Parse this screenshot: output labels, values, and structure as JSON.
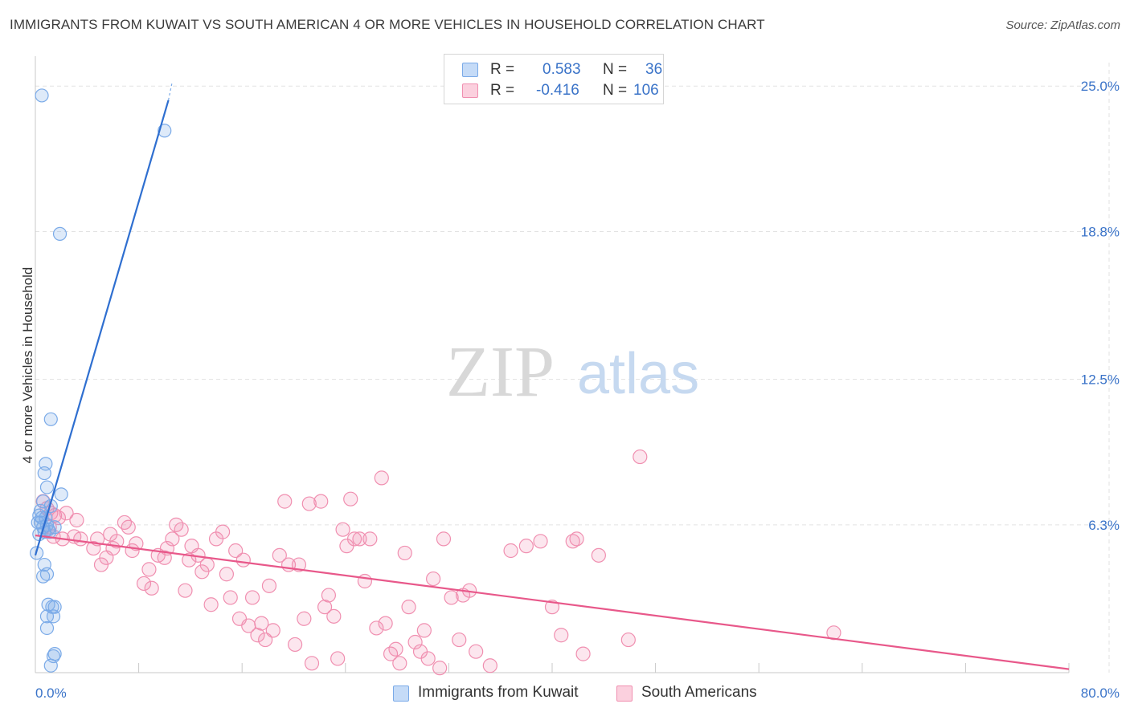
{
  "title": "IMMIGRANTS FROM KUWAIT VS SOUTH AMERICAN 4 OR MORE VEHICLES IN HOUSEHOLD CORRELATION CHART",
  "source": "Source: ZipAtlas.com",
  "watermark": {
    "zip": "ZIP",
    "atlas": "atlas"
  },
  "legend": {
    "r_label": "R =",
    "n_label": "N =",
    "rows": [
      {
        "r": "0.583",
        "n": "36"
      },
      {
        "r": "-0.416",
        "n": "106"
      }
    ]
  },
  "chart_data": {
    "type": "scatter",
    "title": "IMMIGRANTS FROM KUWAIT VS SOUTH AMERICAN 4 OR MORE VEHICLES IN HOUSEHOLD CORRELATION CHART",
    "xlabel": "",
    "ylabel": "4 or more Vehicles in Household",
    "xlim": [
      0,
      80
    ],
    "ylim": [
      0,
      26
    ],
    "x_tick_labels": [
      "0.0%",
      "80.0%"
    ],
    "y_ticks": [
      6.3,
      12.5,
      18.8,
      25.0
    ],
    "y_tick_labels": [
      "6.3%",
      "12.5%",
      "18.8%",
      "25.0%"
    ],
    "grid": true,
    "series": [
      {
        "name": "Immigrants from Kuwait",
        "color": "#7aaae8",
        "line_color": "#2f6fd0",
        "trend": {
          "x0": 0.0,
          "y0": 5.0,
          "x1": 10.3,
          "y1": 24.4,
          "dash_to_x": 10.6,
          "dash_to_y": 25.2
        },
        "points": [
          [
            0.5,
            24.6
          ],
          [
            10.0,
            23.1
          ],
          [
            1.9,
            18.7
          ],
          [
            1.2,
            10.8
          ],
          [
            0.8,
            8.9
          ],
          [
            0.7,
            8.5
          ],
          [
            0.9,
            7.9
          ],
          [
            0.6,
            7.3
          ],
          [
            1.2,
            7.1
          ],
          [
            0.3,
            6.7
          ],
          [
            0.5,
            6.6
          ],
          [
            0.8,
            6.6
          ],
          [
            0.2,
            6.4
          ],
          [
            0.4,
            6.4
          ],
          [
            0.9,
            6.3
          ],
          [
            0.6,
            6.2
          ],
          [
            1.0,
            6.1
          ],
          [
            1.5,
            6.2
          ],
          [
            0.7,
            6.0
          ],
          [
            1.1,
            6.0
          ],
          [
            0.3,
            5.9
          ],
          [
            0.1,
            5.1
          ],
          [
            0.7,
            4.6
          ],
          [
            0.6,
            4.1
          ],
          [
            0.9,
            4.2
          ],
          [
            1.0,
            2.9
          ],
          [
            1.3,
            2.8
          ],
          [
            1.5,
            2.8
          ],
          [
            1.4,
            2.4
          ],
          [
            0.9,
            2.4
          ],
          [
            0.9,
            1.9
          ],
          [
            1.4,
            0.7
          ],
          [
            1.5,
            0.8
          ],
          [
            1.2,
            0.3
          ],
          [
            2.0,
            7.6
          ],
          [
            0.4,
            6.9
          ]
        ]
      },
      {
        "name": "South Americans",
        "color": "#f08fb0",
        "line_color": "#e8588a",
        "trend": {
          "x0": 0.0,
          "y0": 5.85,
          "x1": 80.0,
          "y1": 0.15
        },
        "points": [
          [
            0.6,
            7.3
          ],
          [
            0.9,
            7.0
          ],
          [
            1.2,
            6.8
          ],
          [
            1.5,
            6.7
          ],
          [
            1.8,
            6.6
          ],
          [
            1.1,
            6.2
          ],
          [
            1.4,
            5.8
          ],
          [
            2.1,
            5.7
          ],
          [
            2.4,
            6.8
          ],
          [
            3.0,
            5.8
          ],
          [
            3.5,
            5.7
          ],
          [
            3.2,
            6.5
          ],
          [
            4.5,
            5.3
          ],
          [
            4.8,
            5.7
          ],
          [
            5.1,
            4.6
          ],
          [
            5.5,
            4.9
          ],
          [
            6.0,
            5.3
          ],
          [
            5.8,
            5.9
          ],
          [
            6.3,
            5.6
          ],
          [
            6.9,
            6.4
          ],
          [
            7.2,
            6.2
          ],
          [
            7.5,
            5.2
          ],
          [
            7.8,
            5.5
          ],
          [
            8.4,
            3.8
          ],
          [
            8.8,
            4.4
          ],
          [
            9.0,
            3.6
          ],
          [
            9.5,
            5.0
          ],
          [
            10.0,
            4.9
          ],
          [
            10.2,
            5.3
          ],
          [
            10.6,
            5.7
          ],
          [
            10.9,
            6.3
          ],
          [
            11.3,
            6.1
          ],
          [
            11.6,
            3.5
          ],
          [
            11.9,
            4.8
          ],
          [
            12.1,
            5.4
          ],
          [
            12.6,
            5.0
          ],
          [
            12.9,
            4.3
          ],
          [
            13.3,
            4.6
          ],
          [
            13.6,
            2.9
          ],
          [
            14.0,
            5.7
          ],
          [
            14.5,
            6.0
          ],
          [
            14.8,
            4.2
          ],
          [
            15.1,
            3.2
          ],
          [
            15.5,
            5.2
          ],
          [
            15.8,
            2.3
          ],
          [
            16.1,
            4.8
          ],
          [
            16.5,
            2.0
          ],
          [
            16.8,
            3.2
          ],
          [
            17.2,
            1.6
          ],
          [
            17.5,
            2.1
          ],
          [
            17.8,
            1.4
          ],
          [
            18.1,
            3.7
          ],
          [
            18.4,
            1.8
          ],
          [
            18.9,
            5.0
          ],
          [
            19.3,
            7.3
          ],
          [
            19.6,
            4.6
          ],
          [
            20.1,
            1.2
          ],
          [
            20.4,
            4.6
          ],
          [
            20.8,
            2.3
          ],
          [
            21.2,
            7.2
          ],
          [
            21.4,
            0.4
          ],
          [
            22.1,
            7.3
          ],
          [
            22.4,
            2.8
          ],
          [
            22.7,
            3.3
          ],
          [
            23.1,
            2.4
          ],
          [
            23.4,
            0.6
          ],
          [
            23.8,
            6.1
          ],
          [
            24.1,
            5.4
          ],
          [
            24.4,
            7.4
          ],
          [
            24.7,
            5.7
          ],
          [
            25.1,
            5.7
          ],
          [
            25.5,
            3.9
          ],
          [
            25.9,
            5.7
          ],
          [
            26.4,
            1.9
          ],
          [
            26.8,
            8.3
          ],
          [
            27.1,
            2.1
          ],
          [
            27.5,
            0.8
          ],
          [
            27.9,
            1.0
          ],
          [
            28.2,
            0.4
          ],
          [
            28.6,
            5.1
          ],
          [
            28.9,
            2.8
          ],
          [
            29.4,
            1.3
          ],
          [
            29.8,
            0.9
          ],
          [
            30.1,
            1.8
          ],
          [
            30.4,
            0.6
          ],
          [
            30.8,
            4.0
          ],
          [
            31.3,
            0.2
          ],
          [
            31.6,
            5.7
          ],
          [
            32.2,
            3.2
          ],
          [
            32.8,
            1.4
          ],
          [
            33.1,
            3.3
          ],
          [
            33.6,
            3.5
          ],
          [
            34.1,
            0.9
          ],
          [
            35.2,
            0.3
          ],
          [
            36.8,
            5.2
          ],
          [
            38.0,
            5.4
          ],
          [
            39.1,
            5.6
          ],
          [
            40.0,
            2.8
          ],
          [
            40.7,
            1.6
          ],
          [
            41.6,
            5.6
          ],
          [
            41.9,
            5.7
          ],
          [
            42.4,
            0.8
          ],
          [
            43.6,
            5.0
          ],
          [
            45.9,
            1.4
          ],
          [
            46.8,
            9.2
          ],
          [
            61.8,
            1.7
          ]
        ]
      }
    ]
  }
}
